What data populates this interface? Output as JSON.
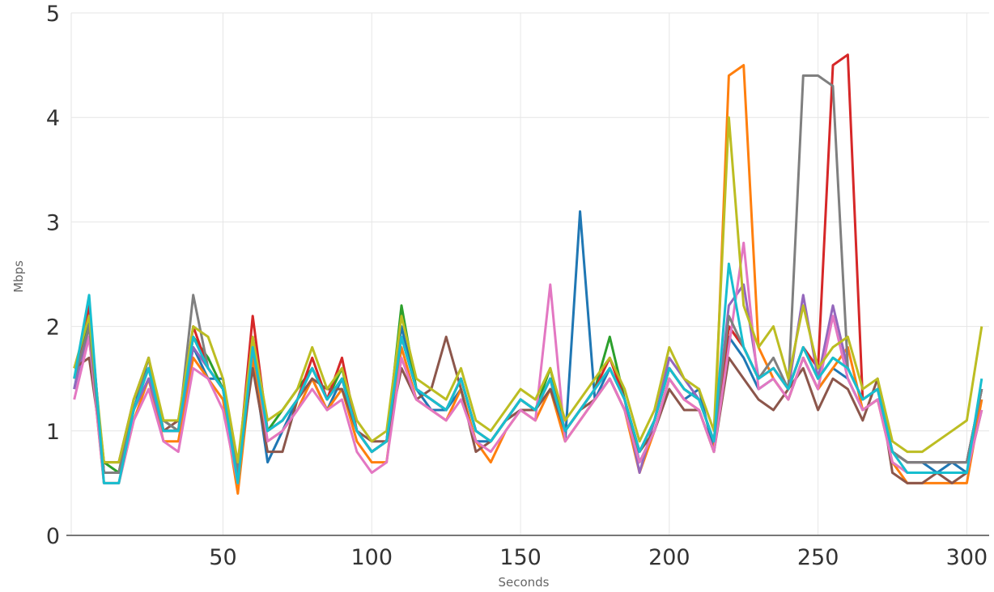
{
  "chart_data": {
    "type": "line",
    "title": "",
    "xlabel": "Seconds",
    "ylabel": "Mbps",
    "xlim": [
      -1,
      307.5
    ],
    "ylim": [
      0,
      5
    ],
    "grid": true,
    "legend": "none",
    "xticks": [
      50,
      100,
      150,
      200,
      250,
      300
    ],
    "yticks": [
      0,
      1,
      2,
      3,
      4,
      5
    ],
    "x": [
      0,
      5,
      10,
      15,
      20,
      25,
      30,
      35,
      40,
      45,
      50,
      55,
      60,
      65,
      70,
      75,
      80,
      85,
      90,
      95,
      100,
      105,
      110,
      115,
      120,
      125,
      130,
      135,
      140,
      145,
      150,
      155,
      160,
      165,
      170,
      175,
      180,
      185,
      190,
      195,
      200,
      205,
      210,
      215,
      220,
      225,
      230,
      235,
      240,
      245,
      250,
      255,
      260,
      265,
      270,
      275,
      280,
      285,
      290,
      295,
      300,
      305
    ],
    "series": [
      {
        "color": "#1f77b4",
        "values": [
          1.4,
          2.1,
          0.6,
          0.6,
          1.2,
          1.7,
          1.0,
          1.0,
          1.8,
          1.5,
          1.5,
          0.5,
          1.7,
          0.7,
          1.0,
          1.3,
          1.5,
          1.2,
          1.5,
          1.0,
          0.8,
          0.9,
          2.0,
          1.4,
          1.2,
          1.2,
          1.4,
          0.9,
          0.9,
          1.1,
          1.2,
          1.2,
          1.5,
          0.9,
          3.1,
          1.3,
          1.6,
          1.3,
          0.7,
          1.0,
          1.5,
          1.3,
          1.4,
          0.8,
          1.9,
          1.7,
          1.4,
          1.5,
          1.3,
          1.7,
          1.4,
          1.6,
          1.5,
          1.2,
          1.3,
          0.8,
          0.7,
          0.7,
          0.6,
          0.7,
          0.6,
          1.3
        ]
      },
      {
        "color": "#ff7f0e",
        "values": [
          1.5,
          1.9,
          0.5,
          0.5,
          1.1,
          1.5,
          0.9,
          0.9,
          1.7,
          1.5,
          1.3,
          0.4,
          1.7,
          0.9,
          1.0,
          1.2,
          1.5,
          1.2,
          1.4,
          0.9,
          0.7,
          0.7,
          1.8,
          1.3,
          1.2,
          1.1,
          1.4,
          0.9,
          0.7,
          1.0,
          1.2,
          1.1,
          1.4,
          0.9,
          1.1,
          1.3,
          1.5,
          1.2,
          0.6,
          1.0,
          1.5,
          1.3,
          1.2,
          0.8,
          4.4,
          4.5,
          1.8,
          1.5,
          1.3,
          1.7,
          1.4,
          1.6,
          1.8,
          1.2,
          1.3,
          0.7,
          0.5,
          0.5,
          0.5,
          0.5,
          0.5,
          1.3
        ]
      },
      {
        "color": "#2ca02c",
        "values": [
          1.6,
          2.0,
          0.7,
          0.6,
          1.3,
          1.6,
          1.1,
          1.0,
          1.9,
          1.7,
          1.4,
          0.6,
          1.8,
          1.0,
          1.2,
          1.4,
          1.6,
          1.3,
          1.6,
          1.0,
          0.8,
          0.9,
          2.2,
          1.4,
          1.3,
          1.2,
          1.5,
          1.0,
          0.9,
          1.1,
          1.3,
          1.2,
          1.6,
          1.0,
          1.2,
          1.4,
          1.9,
          1.3,
          0.8,
          1.1,
          1.6,
          1.4,
          1.3,
          0.9,
          2.0,
          1.8,
          1.5,
          1.6,
          1.4,
          1.8,
          1.5,
          1.7,
          1.6,
          1.3,
          1.4,
          0.8,
          0.7,
          0.7,
          0.7,
          0.7,
          0.7,
          1.4
        ]
      },
      {
        "color": "#d62728",
        "values": [
          1.5,
          2.2,
          0.6,
          0.6,
          1.2,
          1.6,
          1.0,
          1.0,
          2.0,
          1.6,
          1.4,
          0.6,
          2.1,
          1.0,
          1.1,
          1.3,
          1.7,
          1.3,
          1.7,
          1.0,
          0.8,
          0.9,
          1.9,
          1.4,
          1.3,
          1.2,
          1.5,
          1.0,
          0.9,
          1.1,
          1.3,
          1.2,
          1.5,
          1.0,
          1.2,
          1.4,
          1.7,
          1.3,
          0.8,
          1.1,
          1.6,
          1.4,
          1.3,
          0.9,
          2.0,
          1.8,
          1.5,
          1.6,
          1.4,
          1.8,
          1.6,
          4.5,
          4.6,
          1.3,
          1.4,
          0.8,
          0.7,
          0.7,
          0.7,
          0.7,
          0.7,
          1.4
        ]
      },
      {
        "color": "#9467bd",
        "values": [
          1.4,
          2.0,
          0.6,
          0.6,
          1.2,
          1.5,
          1.0,
          1.0,
          1.8,
          1.6,
          1.4,
          0.6,
          1.8,
          1.0,
          1.1,
          1.3,
          1.6,
          1.3,
          1.5,
          1.0,
          0.8,
          0.9,
          1.9,
          1.4,
          1.3,
          1.2,
          1.5,
          1.0,
          0.9,
          1.1,
          1.3,
          1.2,
          1.5,
          1.0,
          1.2,
          1.4,
          1.6,
          1.3,
          0.6,
          1.1,
          1.7,
          1.5,
          1.3,
          0.9,
          2.2,
          2.4,
          1.5,
          1.6,
          1.4,
          2.3,
          1.5,
          2.2,
          1.6,
          1.3,
          1.4,
          0.8,
          0.7,
          0.7,
          0.7,
          0.7,
          0.7,
          1.4
        ]
      },
      {
        "color": "#8c564b",
        "values": [
          1.6,
          1.7,
          0.7,
          0.7,
          1.3,
          1.7,
          1.0,
          1.1,
          1.9,
          1.6,
          1.4,
          0.6,
          1.6,
          0.8,
          0.8,
          1.3,
          1.5,
          1.4,
          1.4,
          1.0,
          0.9,
          0.9,
          1.6,
          1.3,
          1.4,
          1.9,
          1.4,
          0.8,
          0.9,
          1.1,
          1.2,
          1.2,
          1.4,
          1.0,
          1.2,
          1.3,
          1.5,
          1.2,
          0.8,
          1.0,
          1.4,
          1.2,
          1.2,
          0.8,
          1.7,
          1.5,
          1.3,
          1.2,
          1.4,
          1.6,
          1.2,
          1.5,
          1.4,
          1.1,
          1.5,
          0.6,
          0.5,
          0.5,
          0.6,
          0.5,
          0.6,
          1.2
        ]
      },
      {
        "color": "#e377c2",
        "values": [
          1.3,
          1.9,
          0.5,
          0.5,
          1.1,
          1.4,
          0.9,
          0.8,
          1.6,
          1.5,
          1.2,
          0.5,
          1.9,
          0.9,
          1.0,
          1.2,
          1.4,
          1.2,
          1.3,
          0.8,
          0.6,
          0.7,
          1.7,
          1.3,
          1.2,
          1.1,
          1.3,
          0.9,
          0.8,
          1.0,
          1.2,
          1.1,
          2.4,
          0.9,
          1.1,
          1.3,
          1.5,
          1.2,
          0.7,
          1.0,
          1.5,
          1.3,
          1.2,
          0.8,
          1.8,
          2.8,
          1.4,
          1.5,
          1.3,
          1.7,
          1.4,
          2.1,
          1.5,
          1.2,
          1.3,
          0.7,
          0.6,
          0.6,
          0.6,
          0.6,
          0.6,
          1.2
        ]
      },
      {
        "color": "#7f7f7f",
        "values": [
          1.5,
          2.0,
          0.6,
          0.6,
          1.3,
          1.6,
          1.1,
          1.0,
          2.3,
          1.6,
          1.4,
          0.6,
          1.8,
          1.0,
          1.1,
          1.3,
          1.6,
          1.3,
          1.5,
          1.0,
          0.8,
          0.9,
          1.9,
          1.4,
          1.3,
          1.2,
          1.5,
          1.0,
          0.9,
          1.1,
          1.3,
          1.2,
          1.5,
          1.0,
          1.2,
          1.4,
          1.6,
          1.3,
          0.8,
          1.1,
          1.6,
          1.4,
          1.3,
          0.9,
          2.1,
          1.8,
          1.5,
          1.7,
          1.4,
          4.4,
          4.4,
          4.3,
          1.6,
          1.3,
          1.4,
          0.8,
          0.7,
          0.7,
          0.7,
          0.7,
          0.7,
          1.4
        ]
      },
      {
        "color": "#bcbd22",
        "values": [
          1.6,
          2.1,
          0.7,
          0.7,
          1.3,
          1.7,
          1.1,
          1.1,
          2.0,
          1.9,
          1.5,
          0.7,
          1.9,
          1.1,
          1.2,
          1.4,
          1.8,
          1.4,
          1.6,
          1.1,
          0.9,
          1.0,
          2.1,
          1.5,
          1.4,
          1.3,
          1.6,
          1.1,
          1.0,
          1.2,
          1.4,
          1.3,
          1.6,
          1.1,
          1.3,
          1.5,
          1.7,
          1.4,
          0.9,
          1.2,
          1.8,
          1.5,
          1.4,
          1.0,
          4.0,
          2.2,
          1.8,
          2.0,
          1.5,
          2.2,
          1.6,
          1.8,
          1.9,
          1.4,
          1.5,
          0.9,
          0.8,
          0.8,
          0.9,
          1.0,
          1.1,
          2.0
        ]
      },
      {
        "color": "#17becf",
        "values": [
          1.5,
          2.3,
          0.5,
          0.5,
          1.2,
          1.6,
          1.0,
          1.0,
          1.9,
          1.6,
          1.4,
          0.5,
          1.8,
          1.0,
          1.1,
          1.3,
          1.6,
          1.3,
          1.5,
          1.0,
          0.8,
          0.9,
          1.9,
          1.4,
          1.3,
          1.2,
          1.5,
          1.0,
          0.9,
          1.1,
          1.3,
          1.2,
          1.5,
          1.0,
          1.2,
          1.4,
          1.6,
          1.3,
          0.8,
          1.1,
          1.6,
          1.4,
          1.3,
          0.9,
          2.6,
          1.8,
          1.5,
          1.6,
          1.4,
          1.8,
          1.5,
          1.7,
          1.6,
          1.3,
          1.4,
          0.8,
          0.6,
          0.6,
          0.6,
          0.6,
          0.6,
          1.5
        ]
      }
    ]
  }
}
